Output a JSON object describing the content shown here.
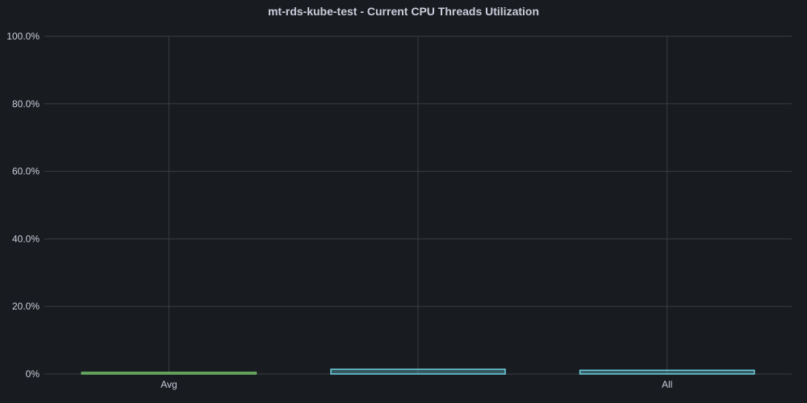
{
  "panel": {
    "title": "mt-rds-kube-test - Current CPU Threads Utilization"
  },
  "colors": {
    "background": "#181b1f",
    "grid": "#3a3d42",
    "text": "#ccccdc"
  },
  "chart_data": {
    "type": "bar",
    "title": "mt-rds-kube-test - Current CPU Threads Utilization",
    "xlabel": "",
    "ylabel": "",
    "ylim": [
      0,
      100
    ],
    "yticks": [
      "0%",
      "20.0%",
      "40.0%",
      "60.0%",
      "80.0%",
      "100.0%"
    ],
    "categories": [
      "Avg",
      "",
      "All"
    ],
    "values": [
      0.3,
      1.4,
      1.1
    ],
    "bar_colors": [
      "#73bf69",
      "#6ed0e0",
      "#6ed0e0"
    ],
    "grid": true,
    "legend": "none"
  }
}
